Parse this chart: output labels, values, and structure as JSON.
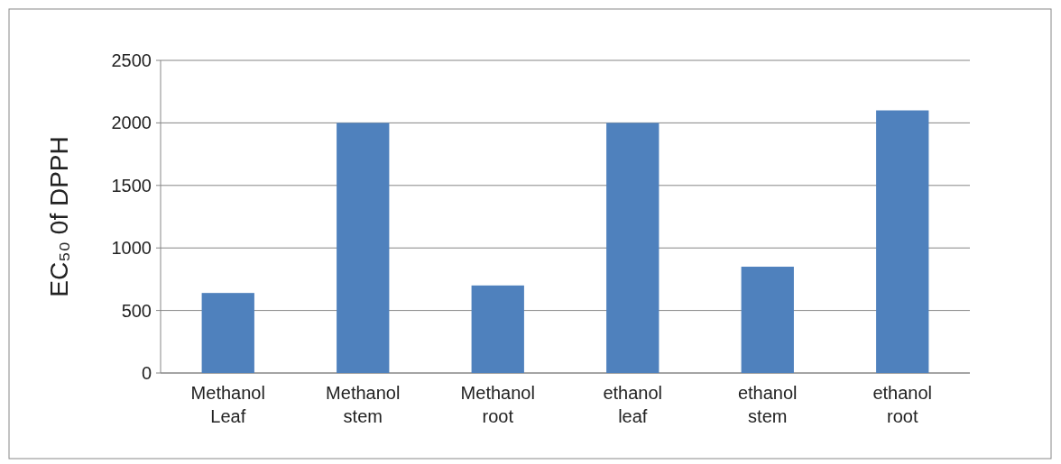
{
  "chart_data": {
    "type": "bar",
    "ylabel": "EC₅₀ 0f DPPH",
    "categories": [
      "Methanol Leaf",
      "Methanol stem",
      "Methanol root",
      "ethanol leaf",
      "ethanol stem",
      "ethanol root"
    ],
    "values": [
      640,
      2000,
      700,
      2000,
      850,
      2100
    ],
    "color": "#4f81bd",
    "ylim": [
      0,
      2500
    ],
    "yticks": [
      0,
      500,
      1000,
      1500,
      2000,
      2500
    ],
    "grid": "y"
  }
}
